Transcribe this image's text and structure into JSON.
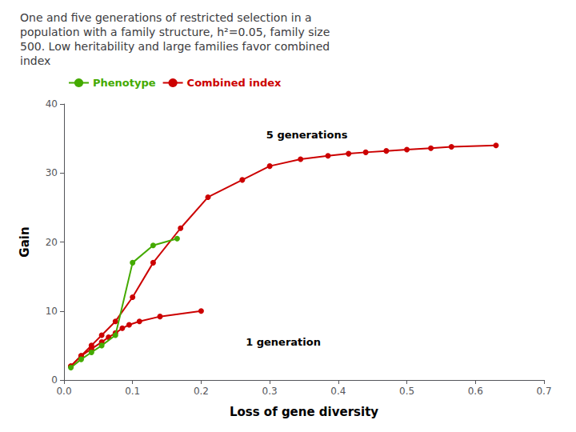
{
  "chart_data": {
    "type": "line",
    "title": "One and five generations of restricted selection in a\npopulation with a family structure, h²=0.05, family size\n500. Low heritability and large families favor combined\nindex",
    "xlabel": "Loss of gene diversity",
    "ylabel": "Gain",
    "xlim": [
      0,
      0.7
    ],
    "ylim": [
      0,
      40
    ],
    "xticks": [
      {
        "value": 0,
        "label": "0.0"
      },
      0.1,
      0.2,
      0.3,
      0.4,
      0.5,
      0.6,
      0.7
    ],
    "yticks": [
      0,
      10,
      20,
      30,
      40
    ],
    "grid": false,
    "marker": "circle",
    "series": [
      {
        "name": "Combined index",
        "color": "#cc0000",
        "x": [
          0.01,
          0.025,
          0.04,
          0.055,
          0.075,
          0.1,
          0.13,
          0.17,
          0.21,
          0.26,
          0.3,
          0.345,
          0.385,
          0.415,
          0.44,
          0.47,
          0.5,
          0.535,
          0.565,
          0.63
        ],
        "values": [
          2.0,
          3.5,
          5.0,
          6.5,
          8.5,
          12.0,
          17.0,
          22.0,
          26.5,
          29.0,
          31.0,
          32.0,
          32.5,
          32.8,
          33.0,
          33.2,
          33.4,
          33.6,
          33.8,
          34.0
        ]
      },
      {
        "name": "Combined index",
        "color": "#cc0000",
        "x": [
          0.01,
          0.025,
          0.04,
          0.055,
          0.065,
          0.075,
          0.085,
          0.095,
          0.11,
          0.14,
          0.2
        ],
        "values": [
          2.0,
          3.5,
          4.5,
          5.5,
          6.2,
          6.8,
          7.5,
          8.0,
          8.5,
          9.2,
          10.0
        ]
      },
      {
        "name": "Phenotype",
        "color": "#44aa00",
        "x": [
          0.01,
          0.025,
          0.04,
          0.055,
          0.075,
          0.1,
          0.13,
          0.165
        ],
        "values": [
          1.8,
          3.0,
          4.0,
          5.0,
          6.5,
          17.0,
          19.5,
          20.5
        ]
      }
    ],
    "legend_order": [
      "Phenotype",
      "Combined index"
    ],
    "annotations": [
      {
        "text": "5 generations",
        "x": 0.295,
        "y": 35.5
      },
      {
        "text": "1 generation",
        "x": 0.265,
        "y": 5.5
      }
    ]
  }
}
